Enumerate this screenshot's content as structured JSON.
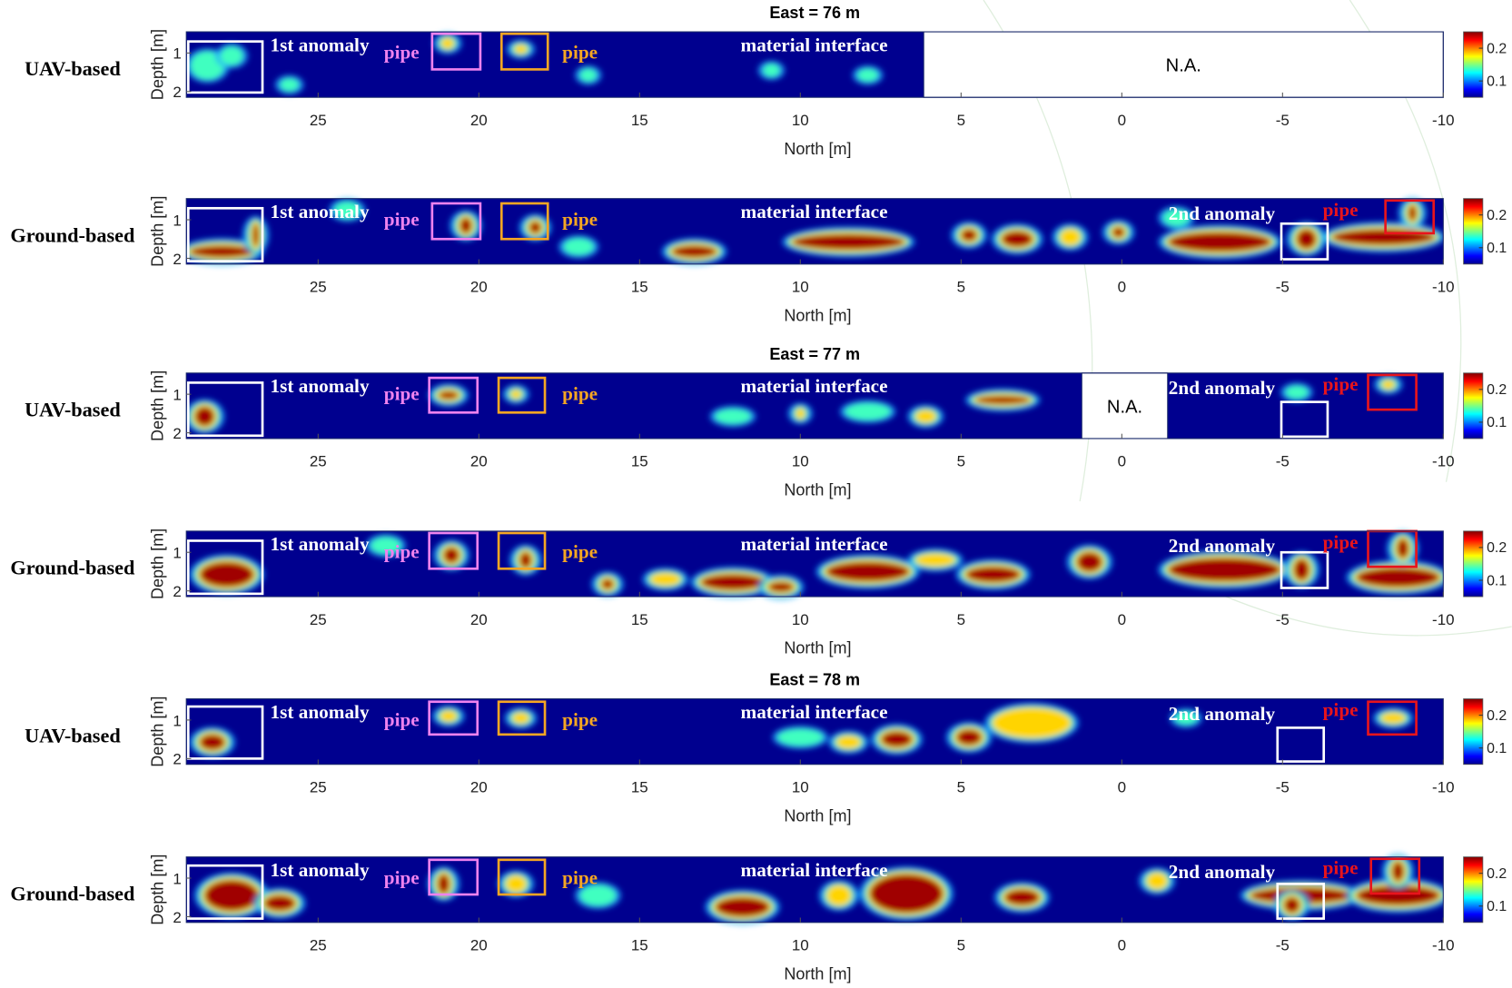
{
  "chart_data": [
    {
      "type": "heatmap",
      "title": "East = 76 m",
      "row_label": "UAV-based",
      "xlabel": "North [m]",
      "ylabel": "Depth [m]",
      "xlim": [
        29.1,
        -10
      ],
      "xticks": [
        25,
        20,
        15,
        10,
        5,
        0,
        -5,
        -10
      ],
      "ylim": [
        0.45,
        2.15
      ],
      "yticks": [
        1,
        2
      ],
      "clim": [
        0.05,
        0.25
      ],
      "cticks": [
        0.1,
        0.2
      ],
      "colormap": "jet",
      "missing_label": "N.A.",
      "annotations": [
        {
          "text": "1st anomaly",
          "color": "#ffffff"
        },
        {
          "text": "pipe",
          "color": "#ee82ee"
        },
        {
          "text": "pipe",
          "color": "#f5a623"
        },
        {
          "text": "material interface",
          "color": "#ffffff"
        }
      ]
    },
    {
      "type": "heatmap",
      "row_label": "Ground-based",
      "xlabel": "North [m]",
      "ylabel": "Depth [m]",
      "xlim": [
        29.1,
        -10
      ],
      "xticks": [
        25,
        20,
        15,
        10,
        5,
        0,
        -5,
        -10
      ],
      "ylim": [
        0.45,
        2.15
      ],
      "yticks": [
        1,
        2
      ],
      "clim": [
        0.05,
        0.25
      ],
      "cticks": [
        0.1,
        0.2
      ],
      "colormap": "jet",
      "annotations": [
        {
          "text": "1st anomaly",
          "color": "#ffffff"
        },
        {
          "text": "pipe",
          "color": "#ee82ee"
        },
        {
          "text": "pipe",
          "color": "#f5a623"
        },
        {
          "text": "material interface",
          "color": "#ffffff"
        },
        {
          "text": "2nd anomaly",
          "color": "#ffffff"
        },
        {
          "text": "pipe",
          "color": "#e8141c"
        }
      ]
    },
    {
      "type": "heatmap",
      "title": "East = 77 m",
      "row_label": "UAV-based",
      "xlabel": "North [m]",
      "ylabel": "Depth [m]",
      "xlim": [
        29.1,
        -10
      ],
      "xticks": [
        25,
        20,
        15,
        10,
        5,
        0,
        -5,
        -10
      ],
      "ylim": [
        0.45,
        2.15
      ],
      "yticks": [
        1,
        2
      ],
      "clim": [
        0.05,
        0.25
      ],
      "cticks": [
        0.1,
        0.2
      ],
      "colormap": "jet",
      "missing_label": "N.A.",
      "annotations": [
        {
          "text": "1st anomaly",
          "color": "#ffffff"
        },
        {
          "text": "pipe",
          "color": "#ee82ee"
        },
        {
          "text": "pipe",
          "color": "#f5a623"
        },
        {
          "text": "material interface",
          "color": "#ffffff"
        },
        {
          "text": "2nd anomaly",
          "color": "#ffffff"
        },
        {
          "text": "pipe",
          "color": "#e8141c"
        }
      ]
    },
    {
      "type": "heatmap",
      "row_label": "Ground-based",
      "xlabel": "North [m]",
      "ylabel": "Depth [m]",
      "xlim": [
        29.1,
        -10
      ],
      "xticks": [
        25,
        20,
        15,
        10,
        5,
        0,
        -5,
        -10
      ],
      "ylim": [
        0.45,
        2.15
      ],
      "yticks": [
        1,
        2
      ],
      "clim": [
        0.05,
        0.25
      ],
      "cticks": [
        0.1,
        0.2
      ],
      "colormap": "jet",
      "annotations": [
        {
          "text": "1st anomaly",
          "color": "#ffffff"
        },
        {
          "text": "pipe",
          "color": "#ee82ee"
        },
        {
          "text": "pipe",
          "color": "#f5a623"
        },
        {
          "text": "material interface",
          "color": "#ffffff"
        },
        {
          "text": "2nd anomaly",
          "color": "#ffffff"
        },
        {
          "text": "pipe",
          "color": "#e8141c"
        }
      ]
    },
    {
      "type": "heatmap",
      "title": "East = 78 m",
      "row_label": "UAV-based",
      "xlabel": "North [m]",
      "ylabel": "Depth [m]",
      "xlim": [
        29.1,
        -10
      ],
      "xticks": [
        25,
        20,
        15,
        10,
        5,
        0,
        -5,
        -10
      ],
      "ylim": [
        0.45,
        2.15
      ],
      "yticks": [
        1,
        2
      ],
      "clim": [
        0.05,
        0.25
      ],
      "cticks": [
        0.1,
        0.2
      ],
      "colormap": "jet",
      "annotations": [
        {
          "text": "1st anomaly",
          "color": "#ffffff"
        },
        {
          "text": "pipe",
          "color": "#ee82ee"
        },
        {
          "text": "pipe",
          "color": "#f5a623"
        },
        {
          "text": "material interface",
          "color": "#ffffff"
        },
        {
          "text": "2nd anomaly",
          "color": "#ffffff"
        },
        {
          "text": "pipe",
          "color": "#e8141c"
        }
      ]
    },
    {
      "type": "heatmap",
      "row_label": "Ground-based",
      "xlabel": "North [m]",
      "ylabel": "Depth [m]",
      "xlim": [
        29.1,
        -10
      ],
      "xticks": [
        25,
        20,
        15,
        10,
        5,
        0,
        -5,
        -10
      ],
      "ylim": [
        0.45,
        2.15
      ],
      "yticks": [
        1,
        2
      ],
      "clim": [
        0.05,
        0.25
      ],
      "cticks": [
        0.1,
        0.2
      ],
      "colormap": "jet",
      "annotations": [
        {
          "text": "1st anomaly",
          "color": "#ffffff"
        },
        {
          "text": "pipe",
          "color": "#ee82ee"
        },
        {
          "text": "pipe",
          "color": "#f5a623"
        },
        {
          "text": "material interface",
          "color": "#ffffff"
        },
        {
          "text": "2nd anomaly",
          "color": "#ffffff"
        },
        {
          "text": "pipe",
          "color": "#e8141c"
        }
      ]
    }
  ]
}
